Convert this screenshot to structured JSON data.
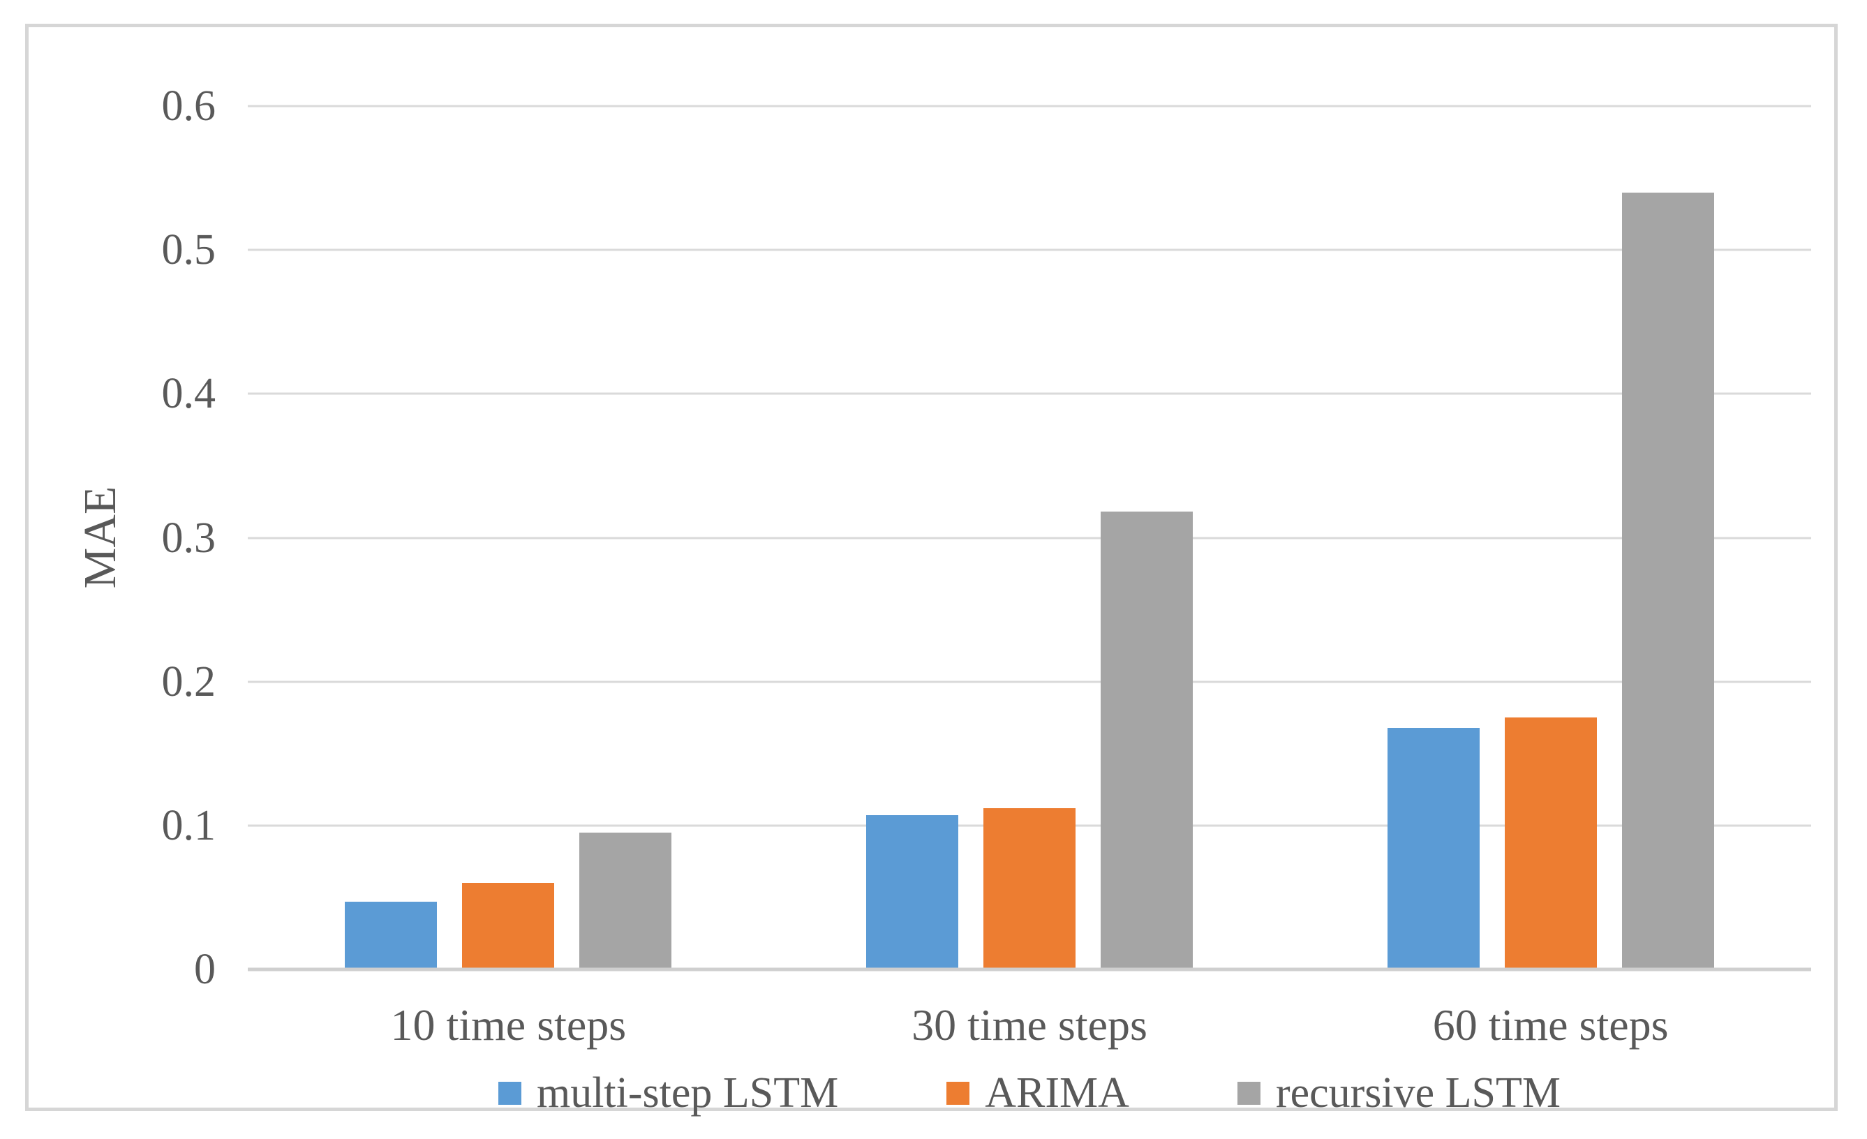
{
  "chart_data": {
    "type": "bar",
    "title": "",
    "xlabel": "",
    "ylabel": "MAE",
    "categories": [
      "10 time steps",
      "30 time steps",
      "60 time steps"
    ],
    "series": [
      {
        "name": "multi-step LSTM",
        "color": "#5B9BD5",
        "values": [
          0.047,
          0.107,
          0.168
        ]
      },
      {
        "name": "ARIMA",
        "color": "#ED7D31",
        "values": [
          0.06,
          0.112,
          0.175
        ]
      },
      {
        "name": "recursive LSTM",
        "color": "#A5A5A5",
        "values": [
          0.095,
          0.318,
          0.54
        ]
      }
    ],
    "ylim": [
      0,
      0.6
    ],
    "ytick_labels": [
      "0",
      "0.1",
      "0.2",
      "0.3",
      "0.4",
      "0.5",
      "0.6"
    ],
    "grid": true,
    "legend_position": "bottom"
  },
  "colors": {
    "text": "#595959",
    "gridline": "#DADADA",
    "axis_line": "#CFCFCF",
    "frame_border": "#D6D6D6",
    "background": "#FFFFFF"
  }
}
